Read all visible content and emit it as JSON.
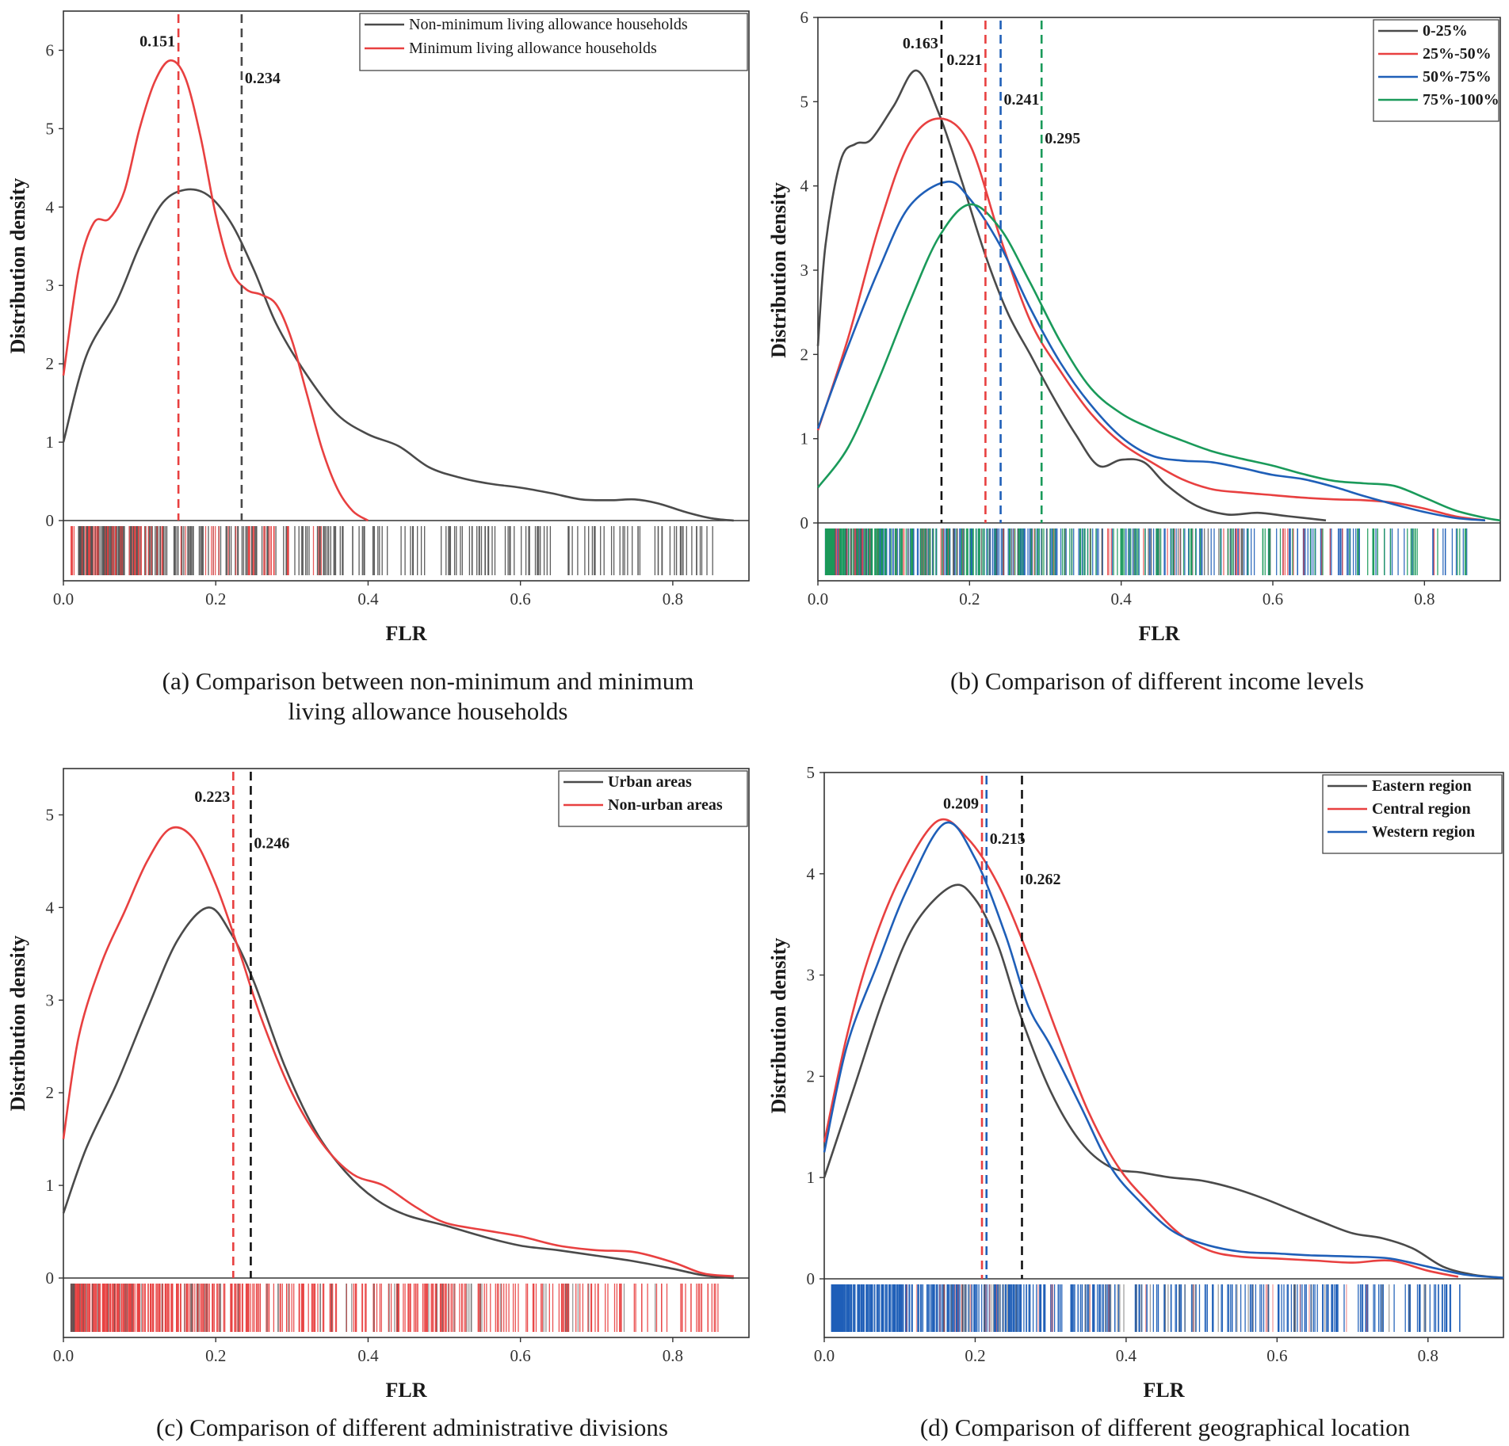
{
  "chart_data": [
    {
      "type": "line",
      "id": "a",
      "caption_lines": [
        "(a) Comparison between non-minimum and minimum",
        "living allowance households"
      ],
      "xlabel": "FLR",
      "ylabel": "Distribution density",
      "xlim": [
        0,
        0.9
      ],
      "ylim": [
        0,
        6.5
      ],
      "xticks": [
        "0.0",
        "0.2",
        "0.4",
        "0.6",
        "0.8"
      ],
      "yticks": [
        "0",
        "1",
        "2",
        "3",
        "4",
        "5",
        "6"
      ],
      "legend_position": "top-right",
      "legend_style": "normal",
      "series": [
        {
          "name": "Non-minimum living allowance households",
          "color": "#4a4a4a",
          "x": [
            0,
            0.03,
            0.07,
            0.1,
            0.13,
            0.16,
            0.19,
            0.22,
            0.25,
            0.28,
            0.32,
            0.36,
            0.4,
            0.44,
            0.48,
            0.52,
            0.56,
            0.6,
            0.64,
            0.68,
            0.72,
            0.75,
            0.78,
            0.82,
            0.85,
            0.88
          ],
          "y": [
            1.0,
            2.1,
            2.8,
            3.5,
            4.05,
            4.22,
            4.15,
            3.8,
            3.2,
            2.5,
            1.85,
            1.35,
            1.1,
            0.95,
            0.68,
            0.55,
            0.47,
            0.42,
            0.35,
            0.27,
            0.26,
            0.27,
            0.22,
            0.1,
            0.03,
            0.0
          ]
        },
        {
          "name": "Minimum living allowance households",
          "color": "#e84040",
          "x": [
            0,
            0.02,
            0.04,
            0.06,
            0.08,
            0.1,
            0.12,
            0.14,
            0.16,
            0.18,
            0.2,
            0.22,
            0.24,
            0.26,
            0.28,
            0.3,
            0.32,
            0.34,
            0.36,
            0.38,
            0.4
          ],
          "y": [
            1.85,
            3.2,
            3.8,
            3.85,
            4.2,
            5.0,
            5.6,
            5.87,
            5.65,
            4.9,
            3.9,
            3.2,
            2.95,
            2.88,
            2.75,
            2.3,
            1.6,
            0.9,
            0.4,
            0.12,
            0.0
          ]
        }
      ],
      "vlines": [
        {
          "value": 0.151,
          "label": "0.151",
          "color": "#e84040",
          "label_side": "left",
          "label_y": 6.12
        },
        {
          "value": 0.234,
          "label": "0.234",
          "color": "#4a4a4a",
          "label_side": "right",
          "label_y": 5.65
        }
      ],
      "rug": {
        "layers": [
          {
            "color": "#555555",
            "count": 320,
            "dist": [
              0.02,
              0.86,
              2.2
            ],
            "opacity": 0.95
          },
          {
            "color": "#e84040",
            "count": 70,
            "dist": [
              0.01,
              0.35,
              1.4
            ],
            "opacity": 0.85
          }
        ]
      }
    },
    {
      "type": "line",
      "id": "b",
      "caption_lines": [
        "(b) Comparison of different income levels"
      ],
      "xlabel": "FLR",
      "ylabel": "Distribution density",
      "xlim": [
        0,
        0.9
      ],
      "ylim": [
        0,
        6
      ],
      "xticks": [
        "0.0",
        "0.2",
        "0.4",
        "0.6",
        "0.8"
      ],
      "yticks": [
        "0",
        "1",
        "2",
        "3",
        "4",
        "5",
        "6"
      ],
      "legend_position": "top-right",
      "legend_style": "bold",
      "series": [
        {
          "name": "0-25%",
          "color": "#4a4a4a",
          "x": [
            0,
            0.01,
            0.03,
            0.05,
            0.07,
            0.1,
            0.13,
            0.16,
            0.19,
            0.22,
            0.25,
            0.28,
            0.31,
            0.34,
            0.37,
            0.4,
            0.43,
            0.46,
            0.5,
            0.54,
            0.58,
            0.62,
            0.67
          ],
          "y": [
            2.1,
            3.3,
            4.3,
            4.5,
            4.55,
            4.95,
            5.37,
            4.85,
            4.05,
            3.2,
            2.5,
            2.0,
            1.5,
            1.05,
            0.68,
            0.75,
            0.72,
            0.45,
            0.2,
            0.1,
            0.12,
            0.08,
            0.03
          ]
        },
        {
          "name": "25%-50%",
          "color": "#e84040",
          "x": [
            0,
            0.04,
            0.08,
            0.12,
            0.16,
            0.2,
            0.24,
            0.28,
            0.32,
            0.36,
            0.4,
            0.44,
            0.48,
            0.52,
            0.56,
            0.6,
            0.64,
            0.68,
            0.72,
            0.76,
            0.8,
            0.84,
            0.88
          ],
          "y": [
            1.1,
            2.2,
            3.5,
            4.5,
            4.8,
            4.5,
            3.4,
            2.4,
            1.8,
            1.3,
            0.95,
            0.72,
            0.52,
            0.4,
            0.36,
            0.33,
            0.3,
            0.28,
            0.27,
            0.24,
            0.17,
            0.08,
            0.03
          ]
        },
        {
          "name": "50%-75%",
          "color": "#1f5fb8",
          "x": [
            0,
            0.04,
            0.08,
            0.12,
            0.17,
            0.2,
            0.24,
            0.28,
            0.32,
            0.36,
            0.4,
            0.44,
            0.48,
            0.52,
            0.56,
            0.6,
            0.64,
            0.68,
            0.72,
            0.76,
            0.8,
            0.84,
            0.88
          ],
          "y": [
            1.12,
            2.1,
            3.0,
            3.75,
            4.05,
            3.85,
            3.3,
            2.55,
            1.9,
            1.4,
            1.02,
            0.8,
            0.74,
            0.72,
            0.65,
            0.57,
            0.52,
            0.43,
            0.32,
            0.22,
            0.13,
            0.06,
            0.03
          ]
        },
        {
          "name": "75%-100%",
          "color": "#1a9a5a",
          "x": [
            0,
            0.04,
            0.08,
            0.12,
            0.16,
            0.2,
            0.24,
            0.28,
            0.32,
            0.36,
            0.4,
            0.44,
            0.48,
            0.52,
            0.56,
            0.6,
            0.64,
            0.68,
            0.72,
            0.76,
            0.8,
            0.84,
            0.88,
            0.9
          ],
          "y": [
            0.42,
            0.9,
            1.7,
            2.6,
            3.4,
            3.78,
            3.5,
            2.85,
            2.15,
            1.6,
            1.3,
            1.12,
            0.98,
            0.85,
            0.76,
            0.68,
            0.58,
            0.5,
            0.47,
            0.44,
            0.3,
            0.15,
            0.06,
            0.03
          ]
        }
      ],
      "vlines": [
        {
          "value": 0.163,
          "label": "0.163",
          "color": "#111111",
          "label_side": "left",
          "label_y": 5.7
        },
        {
          "value": 0.221,
          "label": "0.221",
          "color": "#e84040",
          "label_side": "left",
          "label_y": 5.5
        },
        {
          "value": 0.241,
          "label": "0.241",
          "color": "#1f5fb8",
          "label_side": "right",
          "label_y": 5.03
        },
        {
          "value": 0.295,
          "label": "0.295",
          "color": "#1a9a5a",
          "label_side": "right",
          "label_y": 4.57
        }
      ],
      "rug": {
        "layers": [
          {
            "color": "#1f5fb8",
            "count": 300,
            "dist": [
              0.01,
              0.86,
              2.0
            ],
            "opacity": 0.9
          },
          {
            "color": "#e84040",
            "count": 70,
            "dist": [
              0.01,
              0.82,
              1.8
            ],
            "opacity": 0.8
          },
          {
            "color": "#555555",
            "count": 60,
            "dist": [
              0.01,
              0.66,
              1.8
            ],
            "opacity": 0.8
          },
          {
            "color": "#1a9a5a",
            "count": 200,
            "dist": [
              0.01,
              0.86,
              2.1
            ],
            "opacity": 0.9
          }
        ]
      }
    },
    {
      "type": "line",
      "id": "c",
      "caption_lines": [
        "(c) Comparison of different administrative divisions"
      ],
      "xlabel": "FLR",
      "ylabel": "Distribution density",
      "xlim": [
        0,
        0.9
      ],
      "ylim": [
        0,
        5.5
      ],
      "xticks": [
        "0.0",
        "0.2",
        "0.4",
        "0.6",
        "0.8"
      ],
      "yticks": [
        "0",
        "1",
        "2",
        "3",
        "4",
        "5"
      ],
      "legend_position": "top-right",
      "legend_style": "bold",
      "series": [
        {
          "name": "Urban areas",
          "color": "#4a4a4a",
          "x": [
            0,
            0.03,
            0.07,
            0.11,
            0.15,
            0.19,
            0.22,
            0.25,
            0.29,
            0.33,
            0.37,
            0.41,
            0.45,
            0.5,
            0.55,
            0.6,
            0.65,
            0.7,
            0.75,
            0.8,
            0.84,
            0.88
          ],
          "y": [
            0.7,
            1.4,
            2.1,
            2.9,
            3.65,
            4.0,
            3.72,
            3.2,
            2.3,
            1.6,
            1.15,
            0.85,
            0.68,
            0.57,
            0.45,
            0.35,
            0.3,
            0.24,
            0.18,
            0.1,
            0.03,
            0.0
          ]
        },
        {
          "name": "Non-urban areas",
          "color": "#e84040",
          "x": [
            0,
            0.02,
            0.05,
            0.08,
            0.11,
            0.14,
            0.17,
            0.2,
            0.23,
            0.26,
            0.3,
            0.34,
            0.38,
            0.42,
            0.46,
            0.5,
            0.55,
            0.6,
            0.65,
            0.7,
            0.75,
            0.8,
            0.84,
            0.88
          ],
          "y": [
            1.5,
            2.6,
            3.4,
            3.95,
            4.5,
            4.85,
            4.75,
            4.25,
            3.55,
            2.8,
            2.0,
            1.45,
            1.12,
            1.0,
            0.78,
            0.6,
            0.52,
            0.45,
            0.35,
            0.3,
            0.28,
            0.17,
            0.05,
            0.02
          ]
        }
      ],
      "vlines": [
        {
          "value": 0.223,
          "label": "0.223",
          "color": "#e84040",
          "label_side": "left",
          "label_y": 5.2
        },
        {
          "value": 0.246,
          "label": "0.246",
          "color": "#111111",
          "label_side": "right",
          "label_y": 4.7
        }
      ],
      "rug": {
        "layers": [
          {
            "color": "#e84040",
            "count": 420,
            "dist": [
              0.01,
              0.86,
              2.0
            ],
            "opacity": 0.9
          },
          {
            "color": "#555555",
            "count": 70,
            "dist": [
              0.01,
              0.8,
              1.8
            ],
            "opacity": 0.6
          }
        ]
      }
    },
    {
      "type": "line",
      "id": "d",
      "caption_lines": [
        "(d) Comparison of different geographical location"
      ],
      "xlabel": "FLR",
      "ylabel": "Distribution density",
      "xlim": [
        0,
        0.9
      ],
      "ylim": [
        0,
        5
      ],
      "xticks": [
        "0.0",
        "0.2",
        "0.4",
        "0.6",
        "0.8"
      ],
      "yticks": [
        "0",
        "1",
        "2",
        "3",
        "4",
        "5"
      ],
      "legend_position": "top-right",
      "legend_style": "bold",
      "series": [
        {
          "name": "Eastern region",
          "color": "#4a4a4a",
          "x": [
            0,
            0.04,
            0.08,
            0.12,
            0.17,
            0.2,
            0.23,
            0.26,
            0.3,
            0.34,
            0.38,
            0.42,
            0.46,
            0.5,
            0.54,
            0.58,
            0.62,
            0.66,
            0.7,
            0.74,
            0.78,
            0.82,
            0.86,
            0.9
          ],
          "y": [
            1.0,
            1.9,
            2.8,
            3.5,
            3.88,
            3.75,
            3.3,
            2.6,
            1.85,
            1.35,
            1.1,
            1.05,
            1.0,
            0.97,
            0.9,
            0.8,
            0.68,
            0.56,
            0.45,
            0.4,
            0.3,
            0.12,
            0.04,
            0.01
          ]
        },
        {
          "name": "Central region",
          "color": "#e84040",
          "x": [
            0,
            0.03,
            0.06,
            0.1,
            0.15,
            0.19,
            0.23,
            0.27,
            0.31,
            0.35,
            0.39,
            0.43,
            0.47,
            0.51,
            0.55,
            0.6,
            0.65,
            0.7,
            0.75,
            0.8,
            0.84
          ],
          "y": [
            1.35,
            2.4,
            3.2,
            3.95,
            4.52,
            4.35,
            3.9,
            3.2,
            2.4,
            1.65,
            1.1,
            0.75,
            0.45,
            0.28,
            0.22,
            0.2,
            0.18,
            0.16,
            0.18,
            0.08,
            0.02
          ]
        },
        {
          "name": "Western region",
          "color": "#1f5fb8",
          "x": [
            0,
            0.03,
            0.07,
            0.11,
            0.16,
            0.2,
            0.24,
            0.27,
            0.3,
            0.34,
            0.38,
            0.42,
            0.46,
            0.5,
            0.55,
            0.6,
            0.65,
            0.7,
            0.75,
            0.8,
            0.85,
            0.9
          ],
          "y": [
            1.25,
            2.3,
            3.1,
            3.85,
            4.5,
            4.15,
            3.4,
            2.7,
            2.3,
            1.7,
            1.1,
            0.75,
            0.48,
            0.35,
            0.27,
            0.25,
            0.23,
            0.22,
            0.2,
            0.12,
            0.04,
            0.01
          ]
        }
      ],
      "vlines": [
        {
          "value": 0.209,
          "label": "0.209",
          "color": "#e84040",
          "label_side": "left",
          "label_y": 4.7
        },
        {
          "value": 0.215,
          "label": "0.215",
          "color": "#1f5fb8",
          "label_side": "right",
          "label_y": 4.35
        },
        {
          "value": 0.262,
          "label": "0.262",
          "color": "#111111",
          "label_side": "right",
          "label_y": 3.95
        }
      ],
      "rug": {
        "layers": [
          {
            "color": "#1f5fb8",
            "count": 480,
            "dist": [
              0.01,
              0.85,
              2.0
            ],
            "opacity": 0.95
          },
          {
            "color": "#555555",
            "count": 50,
            "dist": [
              0.15,
              0.8,
              1.6
            ],
            "opacity": 0.55
          },
          {
            "color": "#e84040",
            "count": 25,
            "dist": [
              0.1,
              0.72,
              1.5
            ],
            "opacity": 0.5
          }
        ]
      }
    }
  ]
}
